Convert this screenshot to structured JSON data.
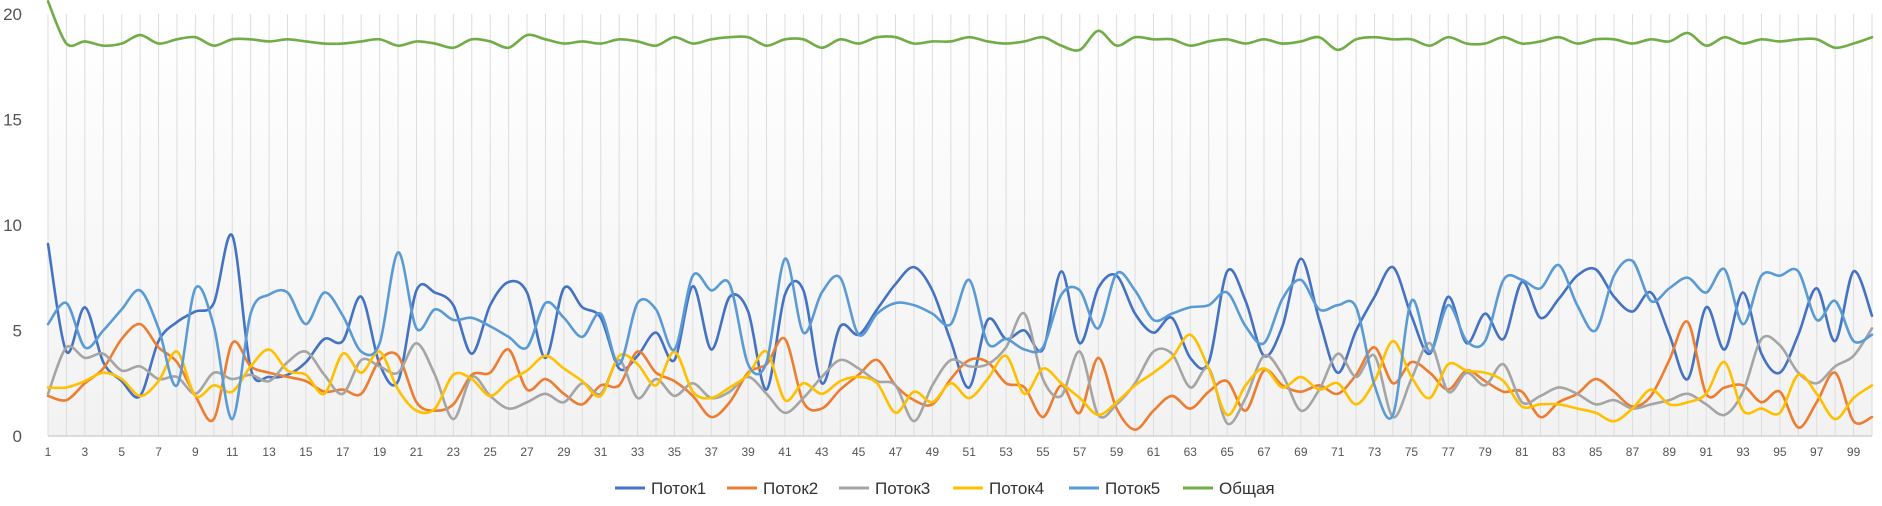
{
  "chart_data": {
    "type": "line",
    "title": "",
    "xlabel": "",
    "ylabel": "",
    "ylim": [
      0,
      20
    ],
    "yticks": [
      0,
      5,
      10,
      15,
      20
    ],
    "x": [
      1,
      2,
      3,
      4,
      5,
      6,
      7,
      8,
      9,
      10,
      11,
      12,
      13,
      14,
      15,
      16,
      17,
      18,
      19,
      20,
      21,
      22,
      23,
      24,
      25,
      26,
      27,
      28,
      29,
      30,
      31,
      32,
      33,
      34,
      35,
      36,
      37,
      38,
      39,
      40,
      41,
      42,
      43,
      44,
      45,
      46,
      47,
      48,
      49,
      50,
      51,
      52,
      53,
      54,
      55,
      56,
      57,
      58,
      59,
      60,
      61,
      62,
      63,
      64,
      65,
      66,
      67,
      68,
      69,
      70,
      71,
      72,
      73,
      74,
      75,
      76,
      77,
      78,
      79,
      80,
      81,
      82,
      83,
      84,
      85,
      86,
      87,
      88,
      89,
      90,
      91,
      92,
      93,
      94,
      95,
      96,
      97,
      98,
      99,
      100
    ],
    "xtick_labels": [
      "1",
      "3",
      "5",
      "7",
      "9",
      "11",
      "13",
      "15",
      "17",
      "19",
      "21",
      "23",
      "25",
      "27",
      "29",
      "31",
      "33",
      "35",
      "37",
      "39",
      "41",
      "43",
      "45",
      "47",
      "49",
      "51",
      "53",
      "55",
      "57",
      "59",
      "61",
      "63",
      "65",
      "67",
      "69",
      "71",
      "73",
      "75",
      "77",
      "79",
      "81",
      "83",
      "85",
      "87",
      "89",
      "91",
      "93",
      "95",
      "97",
      "99"
    ],
    "grid": "vertical",
    "legend_position": "bottom",
    "series": [
      {
        "name": "Поток1",
        "color": "#4472C4",
        "values": [
          9.1,
          4.0,
          6.1,
          3.5,
          2.6,
          1.9,
          4.5,
          5.4,
          5.9,
          6.3,
          9.5,
          3.2,
          2.8,
          2.9,
          3.5,
          4.6,
          4.5,
          6.6,
          3.4,
          2.6,
          6.9,
          6.8,
          6.2,
          3.9,
          6.2,
          7.3,
          6.8,
          3.7,
          7.0,
          6.1,
          5.6,
          3.2,
          3.8,
          4.9,
          3.6,
          7.1,
          4.1,
          6.6,
          5.9,
          2.2,
          6.7,
          6.9,
          2.5,
          5.2,
          4.8,
          6.0,
          7.2,
          8.0,
          6.9,
          4.5,
          2.3,
          5.5,
          4.6,
          5.0,
          4.1,
          7.8,
          4.4,
          7.0,
          7.6,
          5.8,
          4.9,
          5.6,
          3.7,
          3.5,
          7.8,
          6.4,
          3.8,
          5.2,
          8.4,
          5.5,
          3.0,
          5.0,
          6.6,
          8.0,
          5.7,
          3.9,
          6.6,
          4.4,
          5.8,
          4.6,
          7.3,
          5.6,
          6.5,
          7.6,
          7.9,
          6.6,
          5.9,
          6.8,
          4.8,
          2.7,
          6.1,
          4.1,
          6.8,
          3.9,
          3.0,
          4.8,
          7.0,
          4.5,
          7.8,
          5.7
        ]
      },
      {
        "name": "Поток2",
        "color": "#ED7D31",
        "values": [
          1.9,
          1.7,
          2.5,
          3.2,
          4.6,
          5.3,
          4.2,
          3.5,
          1.9,
          0.8,
          4.4,
          3.3,
          3.0,
          2.8,
          2.6,
          2.1,
          2.2,
          2.0,
          3.6,
          3.8,
          1.6,
          1.2,
          1.5,
          2.9,
          3.0,
          4.1,
          2.2,
          2.7,
          2.0,
          1.5,
          2.4,
          2.4,
          4.0,
          3.0,
          2.6,
          1.9,
          0.9,
          1.6,
          3.0,
          3.4,
          4.6,
          1.6,
          1.3,
          2.2,
          2.9,
          3.6,
          2.4,
          1.7,
          1.5,
          2.7,
          3.6,
          3.5,
          2.5,
          2.3,
          0.9,
          2.4,
          1.1,
          3.7,
          1.3,
          0.3,
          1.2,
          1.9,
          1.3,
          2.1,
          2.6,
          1.2,
          3.1,
          2.4,
          2.1,
          2.4,
          2.0,
          2.9,
          4.2,
          2.5,
          3.5,
          3.0,
          2.2,
          3.1,
          2.6,
          2.1,
          2.1,
          0.9,
          1.6,
          2.0,
          2.7,
          2.1,
          1.4,
          1.9,
          3.6,
          5.4,
          2.0,
          2.3,
          2.4,
          1.6,
          2.1,
          0.4,
          1.6,
          3.0,
          0.7,
          0.9
        ]
      },
      {
        "name": "Поток3",
        "color": "#A5A5A5",
        "values": [
          2.0,
          4.2,
          3.7,
          3.9,
          3.1,
          3.3,
          2.7,
          2.8,
          2.0,
          3.0,
          2.7,
          2.9,
          2.6,
          3.5,
          4.0,
          2.9,
          2.0,
          3.6,
          3.3,
          3.0,
          4.4,
          2.9,
          0.8,
          2.8,
          1.9,
          1.3,
          1.6,
          2.0,
          1.6,
          2.5,
          2.0,
          3.6,
          1.8,
          2.7,
          1.9,
          2.5,
          1.8,
          2.1,
          2.8,
          2.0,
          1.1,
          1.8,
          2.8,
          3.6,
          3.2,
          2.6,
          2.4,
          0.7,
          2.4,
          3.6,
          3.3,
          3.4,
          4.2,
          5.8,
          2.7,
          1.9,
          4.0,
          1.0,
          1.5,
          2.5,
          4.0,
          3.9,
          2.3,
          3.2,
          0.6,
          1.8,
          3.8,
          2.9,
          1.2,
          2.2,
          3.9,
          2.8,
          3.8,
          0.9,
          2.7,
          4.4,
          2.1,
          3.0,
          2.4,
          3.4,
          1.6,
          1.9,
          2.3,
          2.0,
          1.5,
          1.7,
          1.3,
          1.5,
          1.7,
          2.0,
          1.5,
          1.0,
          2.1,
          4.6,
          4.3,
          3.0,
          2.5,
          3.3,
          3.8,
          5.1
        ]
      },
      {
        "name": "Поток4",
        "color": "#FFC000",
        "values": [
          2.3,
          2.3,
          2.6,
          3.0,
          2.7,
          1.9,
          2.6,
          4.0,
          1.9,
          2.4,
          2.1,
          3.3,
          4.1,
          3.1,
          2.9,
          2.0,
          3.9,
          3.0,
          4.0,
          2.2,
          1.2,
          1.3,
          2.9,
          2.7,
          1.9,
          2.6,
          3.1,
          3.8,
          3.2,
          2.6,
          1.9,
          3.8,
          3.4,
          2.4,
          4.0,
          2.1,
          1.8,
          2.3,
          2.9,
          4.0,
          1.7,
          2.5,
          2.0,
          2.6,
          2.8,
          2.5,
          1.1,
          2.1,
          1.6,
          2.5,
          1.8,
          2.7,
          3.8,
          2.0,
          3.2,
          2.5,
          1.8,
          1.0,
          1.6,
          2.4,
          3.0,
          3.7,
          4.8,
          3.2,
          1.0,
          2.4,
          3.2,
          2.3,
          2.8,
          2.2,
          2.5,
          1.5,
          2.6,
          4.5,
          2.8,
          1.8,
          3.4,
          3.1,
          3.0,
          2.6,
          1.4,
          1.5,
          1.5,
          1.3,
          1.1,
          0.7,
          1.3,
          2.2,
          1.5,
          1.6,
          2.0,
          3.5,
          1.2,
          1.3,
          1.1,
          2.9,
          2.0,
          0.8,
          1.8,
          2.4
        ]
      },
      {
        "name": "Поток5",
        "color": "#5B9BD5",
        "values": [
          5.3,
          6.3,
          4.2,
          5.0,
          6.0,
          6.9,
          5.1,
          2.4,
          7.0,
          5.2,
          0.8,
          5.8,
          6.7,
          6.8,
          5.3,
          6.8,
          5.7,
          4.0,
          4.4,
          8.7,
          5.1,
          6.0,
          5.5,
          5.6,
          5.2,
          4.7,
          4.2,
          6.3,
          5.6,
          4.7,
          5.8,
          3.4,
          6.3,
          6.0,
          4.1,
          7.6,
          6.9,
          7.2,
          3.4,
          3.5,
          8.4,
          4.9,
          6.8,
          7.5,
          4.8,
          5.8,
          6.3,
          6.2,
          5.8,
          5.3,
          7.4,
          4.4,
          4.6,
          4.1,
          4.2,
          6.7,
          6.9,
          5.1,
          7.7,
          6.9,
          5.5,
          5.8,
          6.1,
          6.2,
          6.8,
          5.2,
          4.4,
          6.5,
          7.4,
          6.0,
          6.2,
          6.1,
          2.4,
          1.0,
          6.4,
          4.0,
          6.2,
          4.5,
          4.5,
          7.4,
          7.4,
          7.0,
          8.1,
          6.2,
          5.0,
          7.6,
          8.3,
          6.4,
          7.0,
          7.5,
          6.8,
          7.9,
          5.3,
          7.6,
          7.6,
          7.8,
          5.5,
          6.4,
          4.5,
          4.8
        ]
      },
      {
        "name": "Общая",
        "color": "#70AD47",
        "values": [
          20.6,
          18.6,
          18.7,
          18.5,
          18.6,
          19.0,
          18.6,
          18.8,
          18.9,
          18.5,
          18.8,
          18.8,
          18.7,
          18.8,
          18.7,
          18.6,
          18.6,
          18.7,
          18.8,
          18.5,
          18.7,
          18.6,
          18.4,
          18.8,
          18.7,
          18.4,
          19.0,
          18.8,
          18.6,
          18.7,
          18.6,
          18.8,
          18.7,
          18.5,
          18.9,
          18.6,
          18.8,
          18.9,
          18.9,
          18.5,
          18.8,
          18.8,
          18.4,
          18.8,
          18.6,
          18.9,
          18.9,
          18.6,
          18.7,
          18.7,
          18.9,
          18.7,
          18.6,
          18.7,
          18.9,
          18.5,
          18.3,
          19.2,
          18.5,
          18.9,
          18.8,
          18.8,
          18.5,
          18.7,
          18.8,
          18.6,
          18.8,
          18.6,
          18.7,
          18.9,
          18.3,
          18.8,
          18.9,
          18.8,
          18.8,
          18.5,
          18.9,
          18.6,
          18.6,
          18.9,
          18.6,
          18.7,
          18.9,
          18.6,
          18.8,
          18.8,
          18.6,
          18.8,
          18.7,
          19.1,
          18.5,
          18.9,
          18.6,
          18.8,
          18.7,
          18.8,
          18.8,
          18.4,
          18.6,
          18.9
        ]
      }
    ]
  }
}
